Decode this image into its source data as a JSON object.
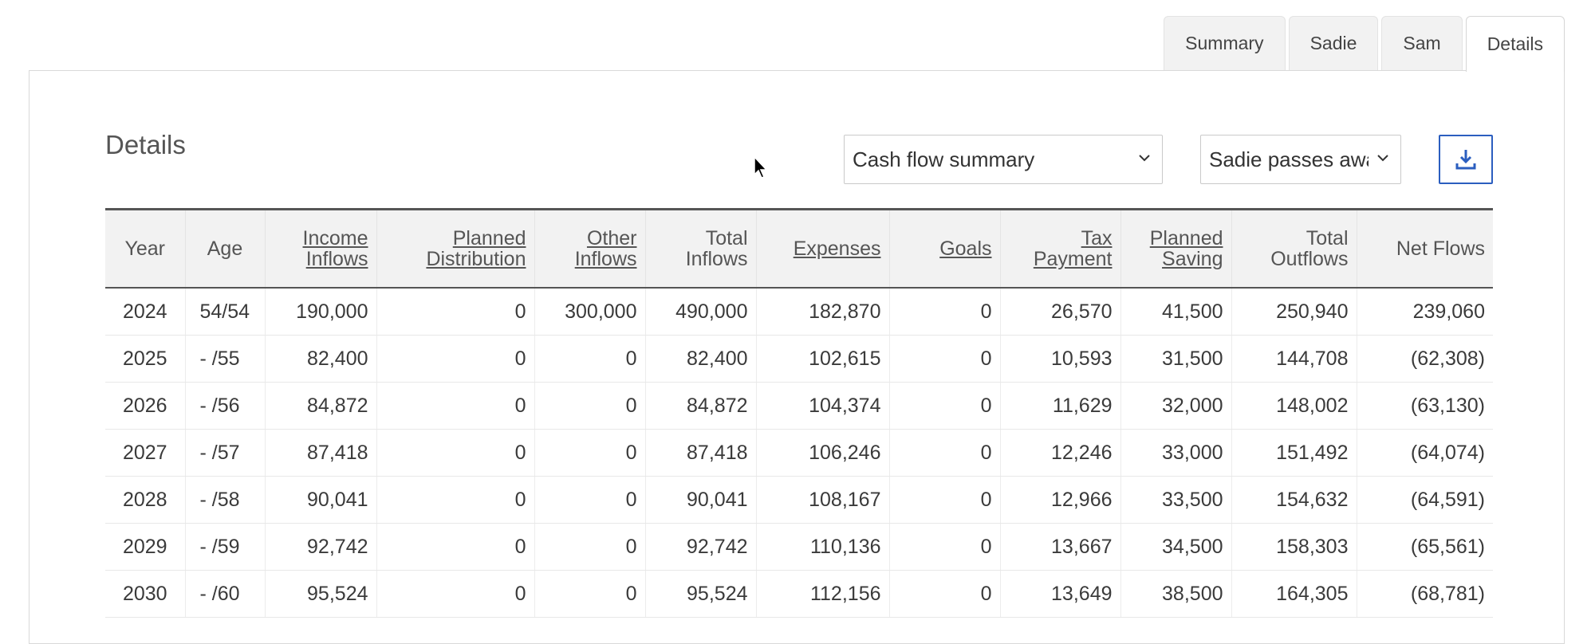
{
  "tabs": [
    "Summary",
    "Sadie",
    "Sam",
    "Details"
  ],
  "active_tab": "Details",
  "page_title": "Details",
  "report_select": {
    "value": "Cash flow summary"
  },
  "scenario_select": {
    "value": "Sadie passes awa"
  },
  "download_icon": "download-icon",
  "table": {
    "headers": [
      {
        "label": "Year",
        "link": false
      },
      {
        "label": "Age",
        "link": false
      },
      {
        "label": "Income Inflows",
        "link": true
      },
      {
        "label": "Planned Distribution",
        "link": true
      },
      {
        "label": "Other Inflows",
        "link": true
      },
      {
        "label": "Total Inflows",
        "link": false
      },
      {
        "label": "Expenses",
        "link": true
      },
      {
        "label": "Goals",
        "link": true
      },
      {
        "label": "Tax Payment",
        "link": true
      },
      {
        "label": "Planned Saving",
        "link": true
      },
      {
        "label": "Total Outflows",
        "link": false
      },
      {
        "label": "Net Flows",
        "link": false
      }
    ],
    "rows": [
      [
        "2024",
        "54/54",
        "190,000",
        "0",
        "300,000",
        "490,000",
        "182,870",
        "0",
        "26,570",
        "41,500",
        "250,940",
        "239,060"
      ],
      [
        "2025",
        "- /55",
        "82,400",
        "0",
        "0",
        "82,400",
        "102,615",
        "0",
        "10,593",
        "31,500",
        "144,708",
        "(62,308)"
      ],
      [
        "2026",
        "- /56",
        "84,872",
        "0",
        "0",
        "84,872",
        "104,374",
        "0",
        "11,629",
        "32,000",
        "148,002",
        "(63,130)"
      ],
      [
        "2027",
        "- /57",
        "87,418",
        "0",
        "0",
        "87,418",
        "106,246",
        "0",
        "12,246",
        "33,000",
        "151,492",
        "(64,074)"
      ],
      [
        "2028",
        "- /58",
        "90,041",
        "0",
        "0",
        "90,041",
        "108,167",
        "0",
        "12,966",
        "33,500",
        "154,632",
        "(64,591)"
      ],
      [
        "2029",
        "- /59",
        "92,742",
        "0",
        "0",
        "92,742",
        "110,136",
        "0",
        "13,667",
        "34,500",
        "158,303",
        "(65,561)"
      ],
      [
        "2030",
        "- /60",
        "95,524",
        "0",
        "0",
        "95,524",
        "112,156",
        "0",
        "13,649",
        "38,500",
        "164,305",
        "(68,781)"
      ]
    ]
  },
  "colors": {
    "accent": "#2b5ebf",
    "header_bg": "#f2f2f2",
    "border_dark": "#555555"
  }
}
